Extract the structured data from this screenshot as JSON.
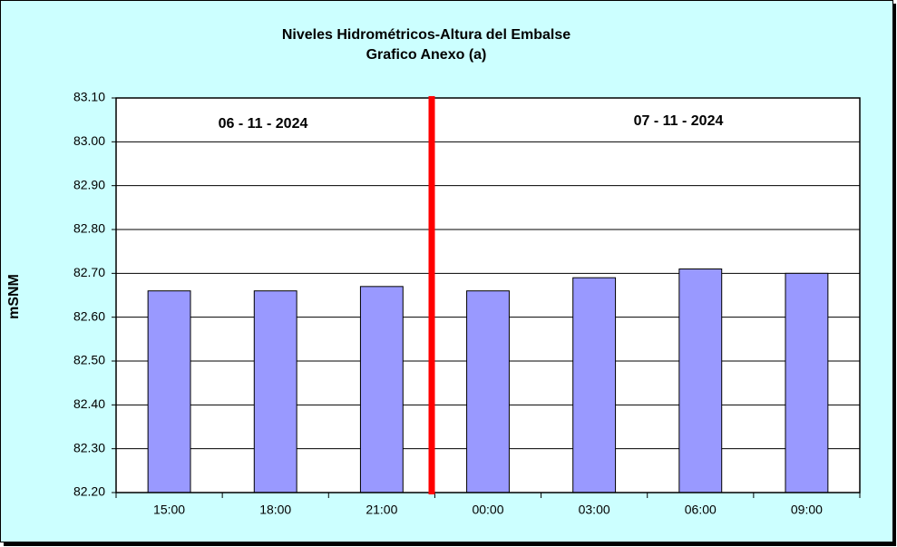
{
  "chart_data": {
    "type": "bar",
    "title": "Niveles Hidrométricos-Altura del Embalse",
    "subtitle": "Grafico Anexo (a)",
    "ylabel": "mSNM",
    "annotations": [
      "06 - 11 - 2024",
      "07 - 11 - 2024"
    ],
    "categories": [
      "15:00",
      "18:00",
      "21:00",
      "00:00",
      "03:00",
      "06:00",
      "09:00"
    ],
    "values": [
      82.66,
      82.66,
      82.67,
      82.66,
      82.69,
      82.71,
      82.7
    ],
    "color": "#9999ff",
    "ylim": [
      82.2,
      83.1
    ],
    "yticks": [
      {
        "value": 82.2,
        "label": "82.20"
      },
      {
        "value": 82.3,
        "label": "82.30"
      },
      {
        "value": 82.4,
        "label": "82.40"
      },
      {
        "value": 82.5,
        "label": "82.50"
      },
      {
        "value": 82.6,
        "label": "82.60"
      },
      {
        "value": 82.7,
        "label": "82.70"
      },
      {
        "value": 82.8,
        "label": "82.80"
      },
      {
        "value": 82.9,
        "label": "82.90"
      },
      {
        "value": 83,
        "label": "83.00"
      },
      {
        "value": 83.1,
        "label": "83.10"
      }
    ],
    "grid": true
  }
}
